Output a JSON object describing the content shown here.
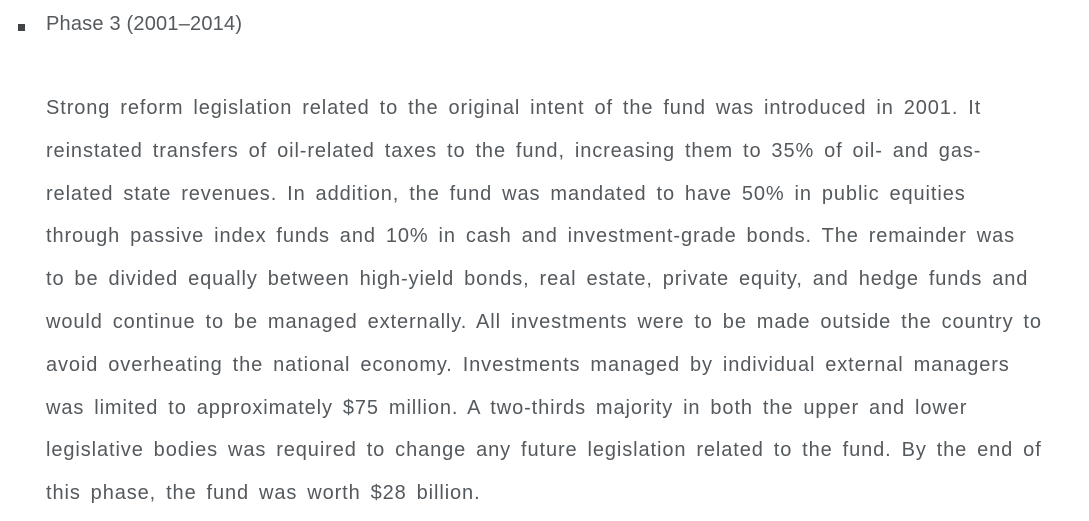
{
  "page": {
    "background_color": "#ffffff",
    "text_color": "#54595d",
    "bullet_color": "#404447"
  },
  "list_item": {
    "bullet_icon": "square-bullet",
    "heading": "Phase 3 (2001–2014)"
  },
  "paragraph": {
    "text": "Strong reform legislation related to the original intent of the fund was introduced in 2001. It\nreinstated transfers of oil-related taxes to the fund, increasing them to 35% of oil- and gas-\nrelated state revenues. In addition, the fund was mandated to have 50% in public equities\nthrough passive index funds and 10% in cash and investment-grade bonds. The remainder was\nto be divided equally between high-yield bonds, real estate, private equity, and hedge funds and\nwould continue to be managed externally. All investments were to be made outside the country to\navoid overheating the national economy. Investments managed by individual external managers\nwas limited to approximately $75 million. A two-thirds majority in both the upper and lower\nlegislative bodies was required to change any future legislation related to the fund. By the end of\nthis phase, the fund was worth $28 billion."
  }
}
